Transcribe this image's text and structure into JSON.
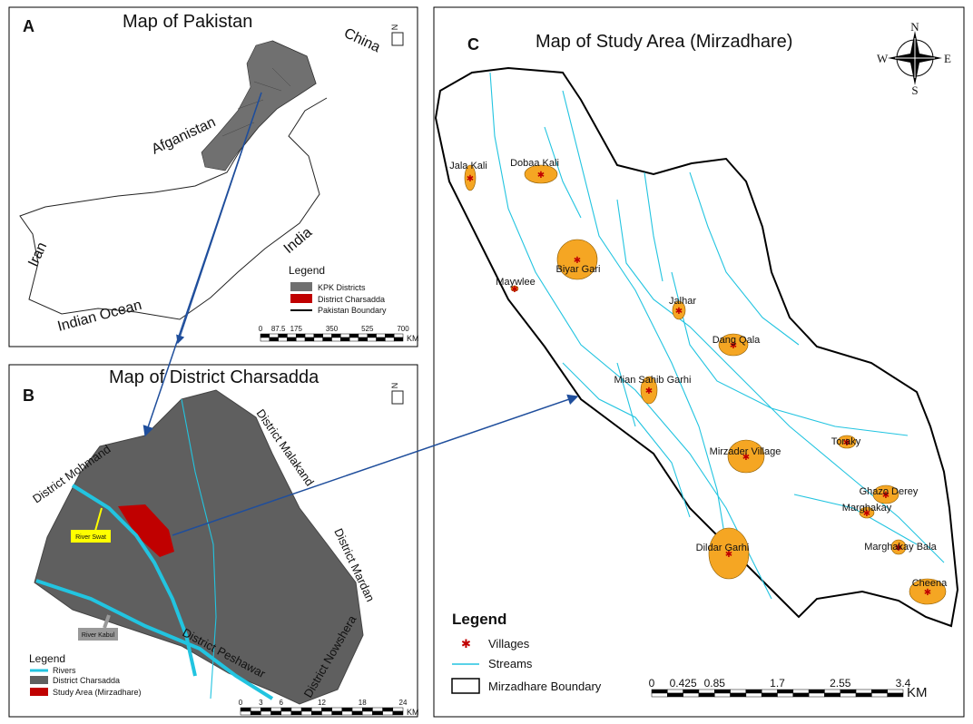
{
  "panel_a": {
    "label": "A",
    "title": "Map of Pakistan",
    "north": "N",
    "places": [
      "China",
      "Afganistan",
      "Iran",
      "India",
      "Indian Ocean"
    ],
    "legend": {
      "title": "Legend",
      "items": [
        "KPK Districts",
        "District Charsadda",
        "Pakistan Boundary"
      ]
    },
    "scale": {
      "ticks": [
        "0",
        "87.5",
        "175",
        "350",
        "525",
        "700"
      ],
      "unit": "KM"
    }
  },
  "panel_b": {
    "label": "B",
    "title": "Map of District Charsadda",
    "north": "N",
    "places": [
      "District Mohmand",
      "District Malakand",
      "District Mardan",
      "District Nowshera",
      "District Peshawar"
    ],
    "callouts": [
      "River Swat",
      "River Kabul"
    ],
    "legend": {
      "title": "Legend",
      "items": [
        "Rivers",
        "District Charsadda",
        "Study Area (Mirzadhare)"
      ]
    },
    "scale": {
      "ticks": [
        "0",
        "3",
        "6",
        "12",
        "18",
        "24"
      ],
      "unit": "KM"
    }
  },
  "panel_c": {
    "label": "C",
    "title": "Map of Study Area (Mirzadhare)",
    "compass": {
      "n": "N",
      "e": "E",
      "s": "S",
      "w": "W"
    },
    "villages": [
      "Jala Kali",
      "Dobaa Kali",
      "Biyar Gari",
      "Maywlee",
      "Jalhar",
      "Dang Qala",
      "Mian Sahib Garhi",
      "Toraky",
      "Mirzader Village",
      "Ghazo Derey",
      "Marghakay",
      "Marghakay Bala",
      "Dildar Garhi",
      "Cheena"
    ],
    "legend": {
      "title": "Legend",
      "items": [
        "Villages",
        "Streams",
        "Mirzadhare Boundary"
      ]
    },
    "scale": {
      "ticks": [
        "0",
        "0.425",
        "0.85",
        "1.7",
        "2.55",
        "3.4"
      ],
      "unit": "KM"
    }
  }
}
